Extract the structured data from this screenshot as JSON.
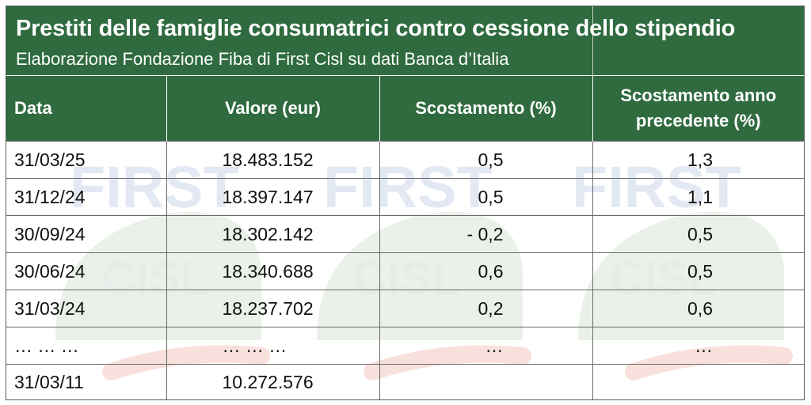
{
  "chart_data": {
    "type": "table",
    "title": "Prestiti delle famiglie consumatrici contro cessione dello stipendio",
    "subtitle": "Elaborazione Fondazione Fiba di First Cisl su dati Banca d’Italia",
    "columns": [
      "Data",
      "Valore (eur)",
      "Scostamento (%)",
      "Scostamento anno precedente (%)"
    ],
    "rows": [
      [
        "31/03/25",
        "18.483.152",
        "0,5",
        "1,3"
      ],
      [
        "31/12/24",
        "18.397.147",
        "0,5",
        "1,1"
      ],
      [
        "30/09/24",
        "18.302.142",
        "- 0,2",
        "0,5"
      ],
      [
        "30/06/24",
        "18.340.688",
        "0,6",
        "0,5"
      ],
      [
        "31/03/24",
        "18.237.702",
        "0,2",
        "0,6"
      ],
      [
        "… … …",
        "… … …",
        "…",
        "…"
      ],
      [
        "31/03/11",
        "10.272.576",
        "",
        ""
      ]
    ]
  },
  "watermark": {
    "word": "FIRST",
    "logo_text": "CISL",
    "colors": {
      "green": "#2f6b3f",
      "wm_blue": "#dfe6f2",
      "wm_green": "#e7efe6",
      "wm_red": "#f6dcd6"
    }
  }
}
